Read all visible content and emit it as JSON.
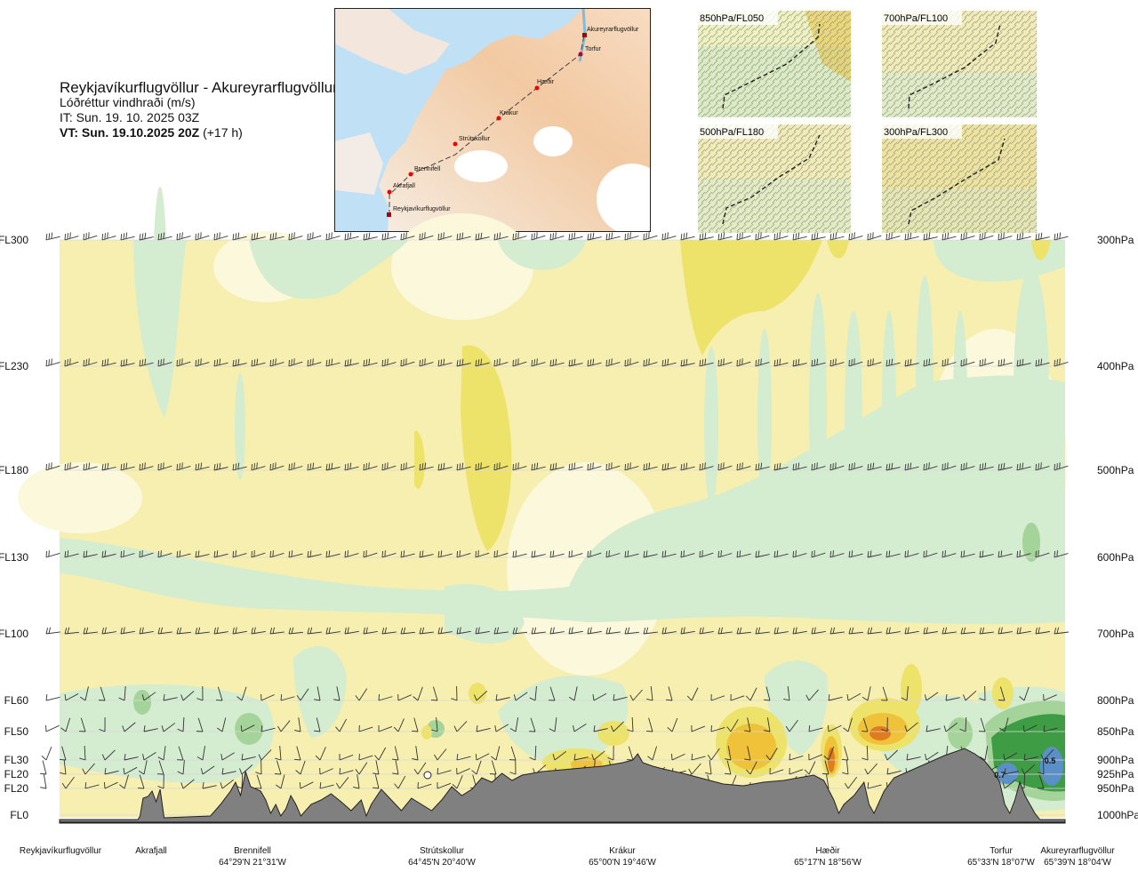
{
  "title": {
    "route": "Reykjavíkurflugvöllur - Akureyrarflugvöllur",
    "variable": "Lóðréttur vindhraði (m/s)",
    "issue_time": "IT: Sun. 19. 10. 2025 03Z",
    "valid_time": "VT: Sun. 19.10.2025 20Z",
    "lead_time": "(+17 h)"
  },
  "overview_map": {
    "waypoints": [
      "Akureyrarflugvöllur",
      "Torfur",
      "Hæðir",
      "Krákur",
      "Strútskollur",
      "Brennifell",
      "Akrafjall",
      "Reykjavíkurflugvöllur"
    ]
  },
  "inset_maps": [
    {
      "label": "850hPa/FL050"
    },
    {
      "label": "700hPa/FL100"
    },
    {
      "label": "500hPa/FL180"
    },
    {
      "label": "300hPa/FL300"
    }
  ],
  "chart_data": {
    "type": "heatmap",
    "title": "Lóðréttur vindhraði (m/s)",
    "flight_levels": [
      {
        "fl": "FL300",
        "hpa": "300hPa",
        "value": 300
      },
      {
        "fl": "FL230",
        "hpa": "400hPa",
        "value": 400
      },
      {
        "fl": "FL180",
        "hpa": "500hPa",
        "value": 500
      },
      {
        "fl": "FL130",
        "hpa": "600hPa",
        "value": 600
      },
      {
        "fl": "FL100",
        "hpa": "700hPa",
        "value": 700
      },
      {
        "fl": "FL60",
        "hpa": "800hPa",
        "value": 800
      },
      {
        "fl": "FL50",
        "hpa": "850hPa",
        "value": 850
      },
      {
        "fl": "FL30",
        "hpa": "900hPa",
        "value": 900
      },
      {
        "fl": "FL20",
        "hpa": "925hPa",
        "value": 925
      },
      {
        "fl": "FL20",
        "hpa": "950hPa",
        "value": 950
      },
      {
        "fl": "FL0",
        "hpa": "1000hPa",
        "value": 1000
      }
    ],
    "y_range_hpa": [
      300,
      1000
    ],
    "x_range": [
      0,
      1
    ],
    "route_points": [
      {
        "name": "Reykjavíkurflugvöllur",
        "coord": "",
        "pos": 0.0
      },
      {
        "name": "Akrafjall",
        "coord": "",
        "pos": 0.093
      },
      {
        "name": "Brennifell",
        "coord": "64°29'N 21°31'W",
        "pos": 0.186
      },
      {
        "name": "Strútskollur",
        "coord": "64°45'N 20°40'W",
        "pos": 0.38
      },
      {
        "name": "Krákur",
        "coord": "65°00'N 19°46'W",
        "pos": 0.57
      },
      {
        "name": "Hæðir",
        "coord": "65°17'N 18°56'W",
        "pos": 0.75
      },
      {
        "name": "Torfur",
        "coord": "65°33'N 18°07'W",
        "pos": 0.943
      },
      {
        "name": "Akureyrarflugvöllur",
        "coord": "65°39'N 18°04'W",
        "pos": 1.0
      }
    ],
    "value_labels": [
      {
        "text": "0.7",
        "pos": 0.935,
        "hpa": 925
      },
      {
        "text": "0.5",
        "pos": 0.985,
        "hpa": 900
      }
    ],
    "color_scale": {
      "strong_sink": "#e07b1e",
      "sink": "#f0c23a",
      "weak_sink": "#ede26a",
      "neutral": "#f7efb0",
      "near_zero": "#fbf8dc",
      "weak_rise": "#d4ecd0",
      "rise": "#a4d49a",
      "strong_rise": "#3e9c45",
      "very_strong_rise": "#5b8fc8",
      "terrain": "#808080"
    }
  }
}
